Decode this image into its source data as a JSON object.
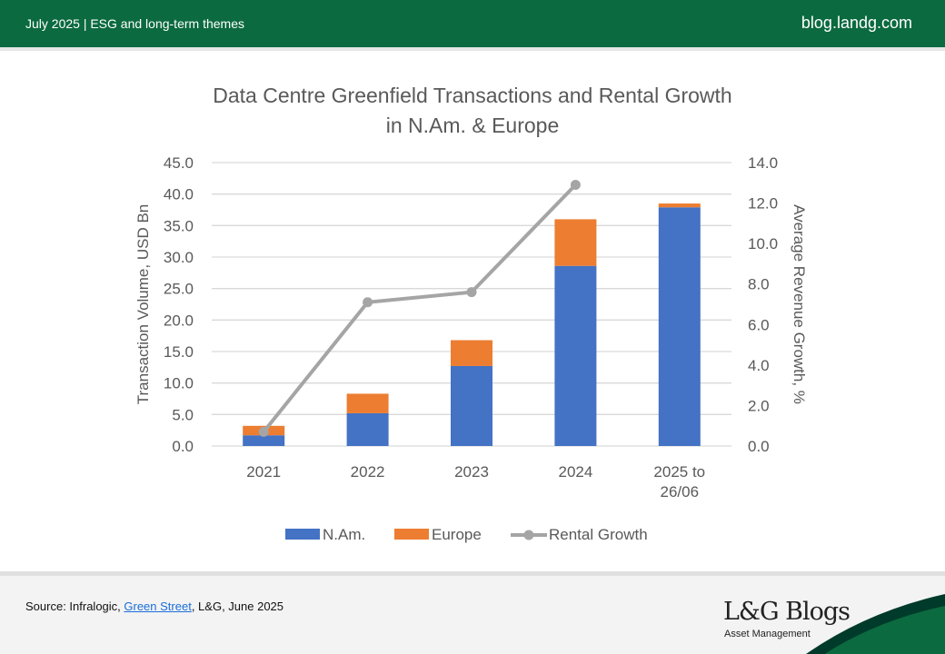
{
  "header": {
    "left": "July 2025 |  ESG and long-term themes",
    "right": "blog.landg.com"
  },
  "footer": {
    "source_prefix": "Source: Infralogic, ",
    "source_link": "Green Street",
    "source_suffix": ", L&G, June 2025",
    "logo": "L&G Blogs",
    "logo_sub": "Asset Management"
  },
  "chart_data": {
    "type": "bar",
    "title": "Data Centre Greenfield Transactions and Rental Growth",
    "title2": "in N.Am. & Europe",
    "categories": [
      "2021",
      "2022",
      "2023",
      "2024",
      "2025 to 26/06"
    ],
    "category_lines": [
      [
        "2021"
      ],
      [
        "2022"
      ],
      [
        "2023"
      ],
      [
        "2024"
      ],
      [
        "2025 to",
        "26/06"
      ]
    ],
    "ylabel": "Transaction Volume, USD Bn",
    "y2label": "Average Revenue Growth, %",
    "ylim": [
      0,
      45
    ],
    "y2lim": [
      0,
      14
    ],
    "yticks": [
      "0.0",
      "5.0",
      "10.0",
      "15.0",
      "20.0",
      "25.0",
      "30.0",
      "35.0",
      "40.0",
      "45.0"
    ],
    "y2ticks": [
      "0.0",
      "2.0",
      "4.0",
      "6.0",
      "8.0",
      "10.0",
      "12.0",
      "14.0"
    ],
    "series": [
      {
        "name": "N.Am.",
        "type": "bar",
        "stack": true,
        "color": "#4472c4",
        "values": [
          1.7,
          5.2,
          12.7,
          28.6,
          37.9
        ]
      },
      {
        "name": "Europe",
        "type": "bar",
        "stack": true,
        "color": "#ed7d31",
        "values": [
          1.5,
          3.1,
          4.1,
          7.4,
          0.6
        ]
      },
      {
        "name": "Rental Growth",
        "type": "line",
        "axis": "right",
        "color": "#a5a5a5",
        "values": [
          0.7,
          7.1,
          7.6,
          12.9,
          null
        ]
      }
    ],
    "grid": true,
    "legend": "bottom"
  }
}
